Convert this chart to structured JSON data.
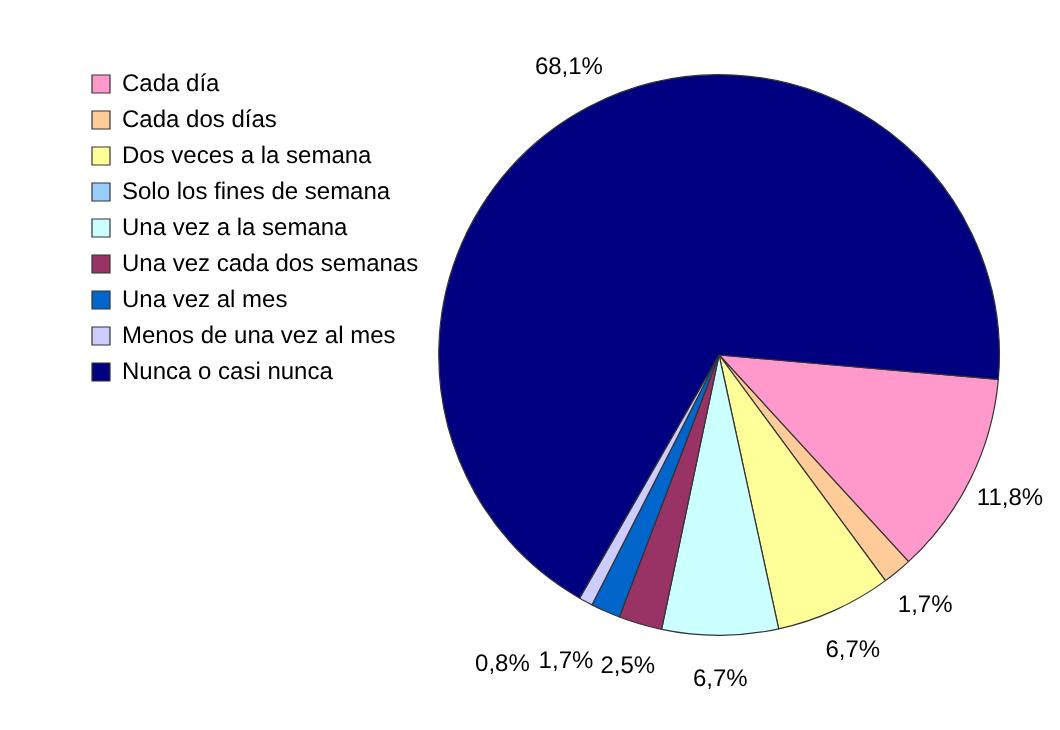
{
  "chart_data": {
    "type": "pie",
    "categories": [
      "Cada día",
      "Cada dos días",
      "Dos veces a la semana",
      "Solo los fines de semana",
      "Una vez a la semana",
      "Una vez cada dos semanas",
      "Una vez al mes",
      "Menos de una vez al mes",
      "Nunca o casi nunca"
    ],
    "values": [
      11.8,
      1.7,
      6.7,
      0,
      6.7,
      2.5,
      1.7,
      0.8,
      68.1
    ],
    "colors": [
      "#ff99cc",
      "#ffcc99",
      "#ffff99",
      "#99ccff",
      "#ccffff",
      "#993366",
      "#0066cc",
      "#ccccff",
      "#000080"
    ],
    "value_labels": [
      "11,8%",
      "1,7%",
      "6,7%",
      null,
      "6,7%",
      "2,5%",
      "1,7%",
      "0,8%",
      "68,1%"
    ],
    "legend": "top left"
  }
}
